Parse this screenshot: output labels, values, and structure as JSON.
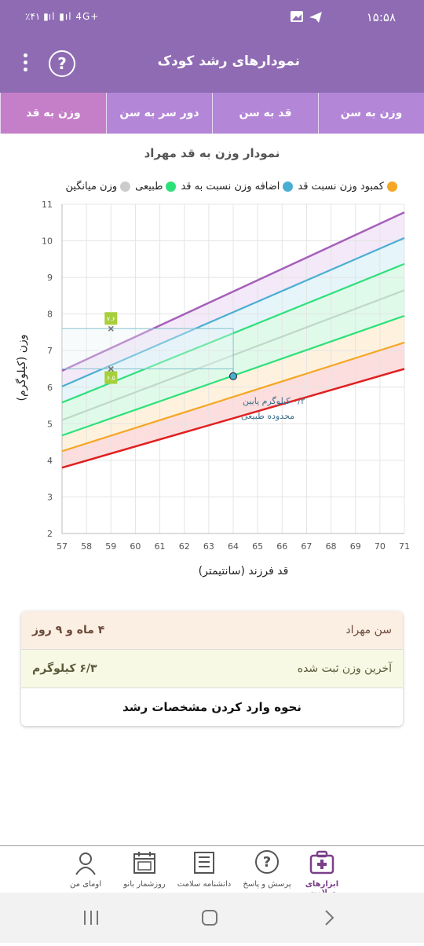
{
  "status": {
    "time": "۱۵:۵۸",
    "battery": "٪۴۱",
    "network": "4G+"
  },
  "header": {
    "title": "نمودارهای رشد کودک",
    "help_label": "?"
  },
  "tabs": [
    "وزن به سن",
    "قد به سن",
    "دور سر به سن",
    "وزن به قد"
  ],
  "chart_title": "نمودار وزن به قد مهراد",
  "legend": [
    {
      "label": "کمبود وزن نسبت قد",
      "color": "#f5a623"
    },
    {
      "label": "اضافه وزن نسبت به قد",
      "color": "#4aaed3"
    },
    {
      "label": "طبیعی",
      "color": "#2ee07a"
    },
    {
      "label": "وزن میانگین",
      "color": "#cccccc"
    }
  ],
  "chart_data": {
    "type": "line",
    "xlabel": "قد فرزند (سانتیمتر)",
    "ylabel": "وزن (کیلوگرم)",
    "xlim": [
      57,
      71
    ],
    "ylim": [
      2,
      11
    ],
    "xticks": [
      57,
      58,
      59,
      60,
      61,
      62,
      63,
      64,
      65,
      66,
      67,
      68,
      69,
      70,
      71
    ],
    "yticks": [
      2,
      3,
      4,
      5,
      6,
      7,
      8,
      9,
      10,
      11
    ],
    "grid": true,
    "x": [
      57,
      71
    ],
    "series": [
      {
        "color": "#e02020",
        "values": [
          3.8,
          6.5
        ]
      },
      {
        "color": "#f5a623",
        "values": [
          4.25,
          7.22
        ]
      },
      {
        "color": "#2ee07a",
        "values": [
          4.68,
          7.95
        ]
      },
      {
        "color": "#bfd8c8",
        "values": [
          5.1,
          8.65
        ]
      },
      {
        "color": "#2ee07a",
        "values": [
          5.58,
          9.37
        ]
      },
      {
        "color": "#4aaed3",
        "values": [
          6.02,
          10.08
        ]
      },
      {
        "color": "#a65fba",
        "values": [
          6.45,
          10.78
        ]
      }
    ],
    "fills": [
      {
        "lower": 0,
        "upper": 1,
        "color": "#fbd3d3"
      },
      {
        "lower": 1,
        "upper": 2,
        "color": "#fdeed3"
      },
      {
        "lower": 2,
        "upper": 4,
        "color": "#d6f8e3"
      },
      {
        "lower": 4,
        "upper": 5,
        "color": "#dcf1f8"
      },
      {
        "lower": 5,
        "upper": 6,
        "color": "#efe1f5"
      }
    ],
    "child_point": {
      "x": 64,
      "y": 6.3
    },
    "range_markers": [
      {
        "x": 59,
        "y": 7.6,
        "label": "۷.۶"
      },
      {
        "x": 59,
        "y": 6.5,
        "label": "۶.۵"
      }
    ],
    "annotation": {
      "line1": "۰/۲ کیلوگرم پایین",
      "line2": "محدوده طبیعی"
    }
  },
  "info": {
    "age_label": "سن مهراد",
    "age_value": "۴ ماه و ۹ روز",
    "weight_label": "آخرین وزن ثبت شده",
    "weight_value": "۶/۳ کیلوگرم",
    "help_text": "نحوه وارد کردن مشخصات رشد"
  },
  "bottom_nav": [
    {
      "label": "ابزارهای سلامت",
      "icon": "medical-kit-icon",
      "active": true
    },
    {
      "label": "پرسش و پاسخ",
      "icon": "question-bubble-icon"
    },
    {
      "label": "دانشنامه سلامت",
      "icon": "encyclopedia-icon"
    },
    {
      "label": "روزشمار بانو",
      "icon": "calendar-icon"
    },
    {
      "label": "اومای من",
      "icon": "profile-icon"
    }
  ]
}
